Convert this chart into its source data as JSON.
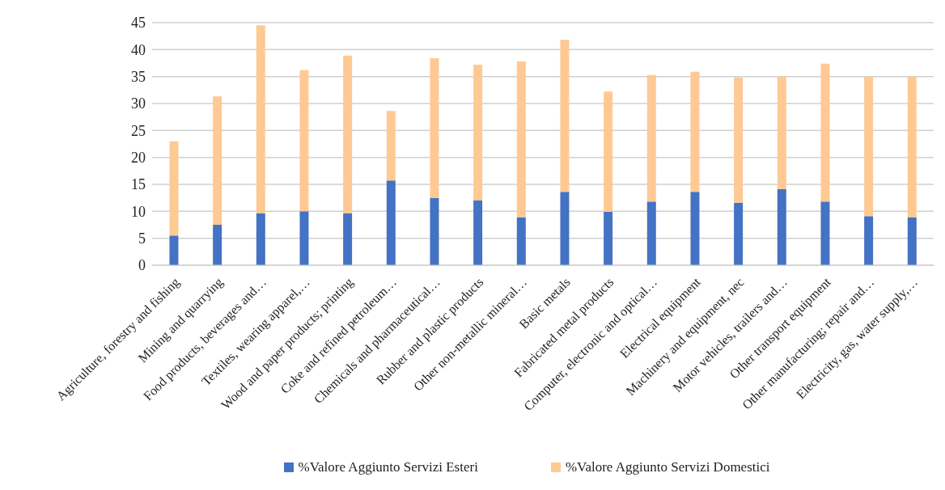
{
  "chart_data": {
    "type": "bar",
    "stacked": true,
    "categories": [
      "Agriculture, forestry and fishing",
      "Mining and quarrying",
      "Food products, beverages and…",
      "Textiles, wearing apparel,…",
      "Wood and paper products; printing",
      "Coke and refined petroleum…",
      "Chemicals and pharmaceutical…",
      "Rubber and plastic products",
      "Other non-metallic mineral…",
      "Basic metals",
      "Fabricated metal products",
      "Computer, electronic and optical…",
      "Electrical equipment",
      "Machinery and equipment, nec",
      "Motor vehicles, trailers and…",
      "Other transport equipment",
      "Other manufacturing; repair and…",
      "Electricity, gas, water supply,…"
    ],
    "series": [
      {
        "name": "%Valore Aggiunto Servizi Esteri",
        "color": "#4472c4",
        "values": [
          5.5,
          7.5,
          9.6,
          10,
          9.6,
          15.7,
          12.5,
          12,
          8.9,
          13.6,
          9.9,
          11.8,
          13.6,
          11.6,
          14.1,
          11.8,
          9.1,
          8.9
        ]
      },
      {
        "name": "%Valore Aggiunto Servizi Domestici",
        "color": "#ffc993",
        "values": [
          17.5,
          23.8,
          34.9,
          26.2,
          29.3,
          12.9,
          25.9,
          25.2,
          28.9,
          28.2,
          22.3,
          23.5,
          22.3,
          23.2,
          20.9,
          25.6,
          25.9,
          26.1
        ]
      }
    ],
    "ylim": [
      0,
      45
    ],
    "yticks": [
      0,
      5,
      10,
      15,
      20,
      25,
      30,
      35,
      40,
      45
    ],
    "grid": "y",
    "legend": "bottom"
  }
}
